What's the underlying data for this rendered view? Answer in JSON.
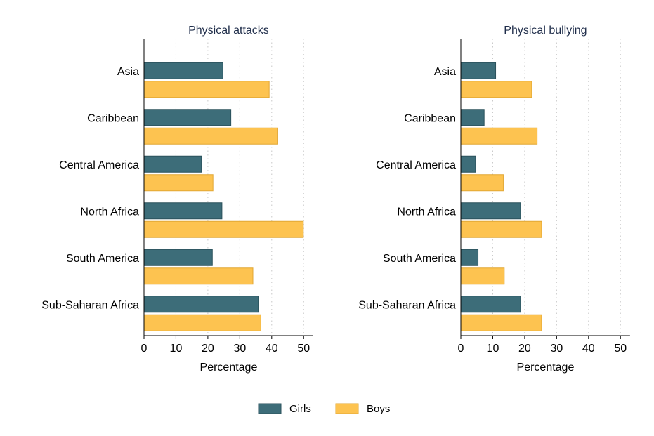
{
  "chart_data": [
    {
      "type": "bar",
      "orientation": "horizontal",
      "title": "Physical attacks",
      "xlabel": "Percentage",
      "xlim": [
        0,
        53
      ],
      "xticks": [
        0,
        10,
        20,
        30,
        40,
        50
      ],
      "grid": true,
      "categories": [
        "Asia",
        "Caribbean",
        "Central America",
        "North Africa",
        "South America",
        "Sub-Saharan Africa"
      ],
      "series": [
        {
          "name": "Girls",
          "values": [
            24.7,
            27.2,
            18.0,
            24.4,
            21.4,
            35.8
          ]
        },
        {
          "name": "Boys",
          "values": [
            39.2,
            41.9,
            21.6,
            49.9,
            34.1,
            36.6
          ]
        }
      ]
    },
    {
      "type": "bar",
      "orientation": "horizontal",
      "title": "Physical bullying",
      "xlabel": "Percentage",
      "xlim": [
        0,
        53
      ],
      "xticks": [
        0,
        10,
        20,
        30,
        40,
        50
      ],
      "grid": true,
      "categories": [
        "Asia",
        "Caribbean",
        "Central America",
        "North Africa",
        "South America",
        "Sub-Saharan Africa"
      ],
      "series": [
        {
          "name": "Girls",
          "values": [
            10.9,
            7.3,
            4.6,
            18.7,
            5.4,
            18.7
          ]
        },
        {
          "name": "Boys",
          "values": [
            22.2,
            23.9,
            13.3,
            25.3,
            13.6,
            25.3
          ]
        }
      ]
    }
  ],
  "legend": {
    "position": "bottom",
    "items": [
      {
        "label": "Girls",
        "color": "#3d6d79"
      },
      {
        "label": "Boys",
        "color": "#fdc350"
      }
    ]
  },
  "colors": {
    "girls_fill": "#3d6d79",
    "girls_stroke": "#2b525c",
    "boys_fill": "#fdc350",
    "boys_stroke": "#e2a733"
  }
}
